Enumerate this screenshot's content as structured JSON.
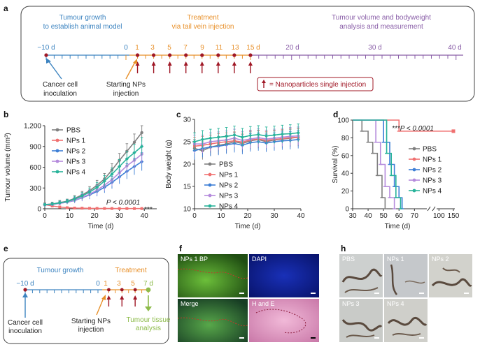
{
  "colors": {
    "growth_blue": "#3d84c0",
    "treatment_orange": "#e8902a",
    "analysis_purple": "#8a5fa8",
    "injection_red": "#a01826",
    "pbs": "#808080",
    "nps1": "#f07070",
    "nps2": "#3d7fd6",
    "nps3": "#b58bdc",
    "nps4": "#28b39a",
    "tissue_green": "#8dbb4a"
  },
  "panel_a": {
    "label": "a",
    "phase_growth": [
      "Tumour growth",
      "to establish animal model"
    ],
    "phase_treatment": [
      "Treatment",
      "via tail vein injection"
    ],
    "phase_analysis": [
      "Tumour volume and bodyweight",
      "analysis and measurement"
    ],
    "tick_labels": [
      "−10 d",
      "0",
      "1",
      "3",
      "5",
      "7",
      "9",
      "11",
      "13",
      "15 d",
      "20 d",
      "30 d",
      "40 d"
    ],
    "cancer_label": [
      "Cancer cell",
      "inoculation"
    ],
    "start_label": [
      "Starting NPs",
      "injection"
    ],
    "legend_text": "= Nanoparticles single injection"
  },
  "panel_e": {
    "label": "e",
    "phase_growth": "Tumour growth",
    "phase_treatment": "Treatment",
    "tick_labels": [
      "−10 d",
      "0",
      "1",
      "3",
      "5",
      "7 d"
    ],
    "cancer_label": [
      "Cancer cell",
      "inoculation"
    ],
    "start_label": [
      "Starting NPs",
      "injection"
    ],
    "tissue_label": [
      "Tumour tissue",
      "analysis"
    ]
  },
  "panel_f": {
    "label": "f",
    "tiles": [
      "NPs 1 BP",
      "DAPI",
      "Merge",
      "H and E"
    ]
  },
  "panel_h": {
    "label": "h",
    "tiles": [
      "PBS",
      "NPs 1",
      "NPs 2",
      "NPs 3",
      "NPs 4"
    ]
  },
  "chart_data": [
    {
      "panel": "b",
      "type": "line",
      "title": "",
      "xlabel": "Time (d)",
      "ylabel": "Tumour volume (mm³)",
      "xlim": [
        0,
        45
      ],
      "ylim": [
        0,
        1200
      ],
      "xticks": [
        0,
        10,
        20,
        30,
        40
      ],
      "yticks": [
        0,
        300,
        600,
        900,
        1200
      ],
      "ytick_labels": [
        "0",
        "300",
        "600",
        "900",
        "1,200"
      ],
      "x": [
        0,
        3,
        6,
        9,
        12,
        15,
        18,
        21,
        24,
        27,
        30,
        33,
        36,
        39
      ],
      "annotation": "P < 0.0001",
      "stars": "***",
      "legend": "top-left",
      "series": [
        {
          "name": "PBS",
          "values": [
            60,
            70,
            90,
            110,
            150,
            200,
            260,
            340,
            430,
            560,
            700,
            830,
            960,
            1100
          ],
          "errors": [
            25,
            25,
            30,
            30,
            40,
            50,
            60,
            70,
            80,
            90,
            100,
            110,
            120,
            130
          ]
        },
        {
          "name": "NPs 1",
          "values": [
            60,
            40,
            25,
            15,
            10,
            8,
            6,
            5,
            4,
            4,
            3,
            3,
            3,
            3
          ],
          "errors": [
            20,
            15,
            10,
            8,
            6,
            5,
            4,
            3,
            3,
            3,
            2,
            2,
            2,
            2
          ]
        },
        {
          "name": "NPs 2",
          "values": [
            55,
            65,
            80,
            95,
            120,
            160,
            200,
            250,
            310,
            380,
            460,
            540,
            610,
            680
          ],
          "errors": [
            20,
            20,
            25,
            30,
            40,
            50,
            60,
            70,
            80,
            90,
            100,
            110,
            120,
            130
          ]
        },
        {
          "name": "NPs 3",
          "values": [
            55,
            62,
            78,
            96,
            125,
            165,
            210,
            270,
            340,
            420,
            520,
            620,
            700,
            790
          ],
          "errors": [
            20,
            20,
            25,
            30,
            40,
            50,
            60,
            70,
            80,
            90,
            100,
            110,
            120,
            130
          ]
        },
        {
          "name": "NPs 4",
          "values": [
            58,
            68,
            85,
            105,
            140,
            185,
            240,
            310,
            400,
            500,
            610,
            720,
            810,
            900
          ],
          "errors": [
            20,
            20,
            25,
            30,
            40,
            50,
            60,
            70,
            80,
            90,
            100,
            110,
            120,
            130
          ]
        }
      ]
    },
    {
      "panel": "c",
      "type": "line",
      "title": "",
      "xlabel": "Time (d)",
      "ylabel": "Body weight (g)",
      "xlim": [
        0,
        40
      ],
      "ylim": [
        10,
        30
      ],
      "xticks": [
        0,
        10,
        20,
        30,
        40
      ],
      "yticks": [
        10,
        15,
        20,
        25,
        30
      ],
      "x": [
        0,
        3,
        6,
        9,
        12,
        15,
        18,
        21,
        24,
        27,
        30,
        33,
        36,
        39
      ],
      "legend": "bottom-left",
      "series": [
        {
          "name": "PBS",
          "values": [
            23.5,
            23,
            23.8,
            24.2,
            24.5,
            25,
            24.6,
            25.2,
            25.5,
            25,
            25.4,
            25.6,
            25.8,
            26
          ],
          "errors": [
            2,
            2,
            2,
            2,
            2,
            2,
            2,
            2,
            2,
            2,
            2,
            2,
            2,
            2
          ]
        },
        {
          "name": "NPs 1",
          "values": [
            24,
            24.2,
            24.5,
            24.8,
            25,
            25.2,
            24.9,
            25.4,
            25.6,
            25.3,
            25.5,
            25.7,
            25.9,
            26
          ],
          "errors": [
            2,
            2,
            2,
            2,
            2,
            2,
            2,
            2,
            2,
            2,
            2,
            2,
            2,
            2
          ]
        },
        {
          "name": "NPs 2",
          "values": [
            23,
            23.5,
            23.8,
            24,
            24.3,
            24.6,
            24.2,
            24.8,
            25,
            24.7,
            25,
            25.2,
            25.3,
            25.5
          ],
          "errors": [
            2,
            2,
            2,
            2,
            2,
            2,
            2,
            2,
            2,
            2,
            2,
            2,
            2,
            2
          ]
        },
        {
          "name": "NPs 3",
          "values": [
            24.5,
            24.5,
            25,
            25.2,
            25.4,
            25.8,
            25.3,
            25.6,
            25.9,
            25.6,
            25.8,
            26,
            26.2,
            26.3
          ],
          "errors": [
            2,
            2,
            2,
            2,
            2,
            2,
            2,
            2,
            2,
            2,
            2,
            2,
            2,
            2
          ]
        },
        {
          "name": "NPs 4",
          "values": [
            25,
            25.5,
            25.8,
            26,
            26.2,
            26.5,
            26,
            26.4,
            26.6,
            26.3,
            26.5,
            26.7,
            26.8,
            27
          ],
          "errors": [
            2,
            2,
            2,
            2,
            2,
            2,
            2,
            2,
            2,
            2,
            2,
            2,
            2,
            2
          ]
        }
      ]
    },
    {
      "panel": "d",
      "type": "line",
      "title": "",
      "xlabel": "Time (d)",
      "ylabel": "Survival (%)",
      "xlim": [
        30,
        150
      ],
      "ylim": [
        0,
        100
      ],
      "xticks": [
        30,
        40,
        50,
        60,
        70,
        100,
        150
      ],
      "yticks": [
        0,
        20,
        40,
        60,
        80,
        100
      ],
      "axis_break": [
        78,
        92
      ],
      "annotation": "***P < 0.0001",
      "legend": "right",
      "series": [
        {
          "name": "PBS",
          "steps": [
            [
              30,
              100
            ],
            [
              36,
              87.5
            ],
            [
              40,
              75
            ],
            [
              43,
              62.5
            ],
            [
              46,
              37.5
            ],
            [
              49,
              12.5
            ],
            [
              51,
              0
            ]
          ]
        },
        {
          "name": "NPs 1",
          "steps": [
            [
              30,
              100
            ],
            [
              60,
              87.5
            ],
            [
              150,
              87.5
            ]
          ]
        },
        {
          "name": "NPs 2",
          "steps": [
            [
              30,
              100
            ],
            [
              50,
              75
            ],
            [
              54,
              50
            ],
            [
              57,
              25
            ],
            [
              60,
              12.5
            ],
            [
              62,
              0
            ]
          ]
        },
        {
          "name": "NPs 3",
          "steps": [
            [
              30,
              100
            ],
            [
              45,
              75
            ],
            [
              48,
              50
            ],
            [
              51,
              25
            ],
            [
              54,
              12.5
            ],
            [
              57,
              0
            ]
          ]
        },
        {
          "name": "NPs 4",
          "steps": [
            [
              30,
              100
            ],
            [
              52,
              62.5
            ],
            [
              55,
              37.5
            ],
            [
              58,
              12.5
            ],
            [
              61,
              0
            ]
          ]
        }
      ]
    }
  ]
}
